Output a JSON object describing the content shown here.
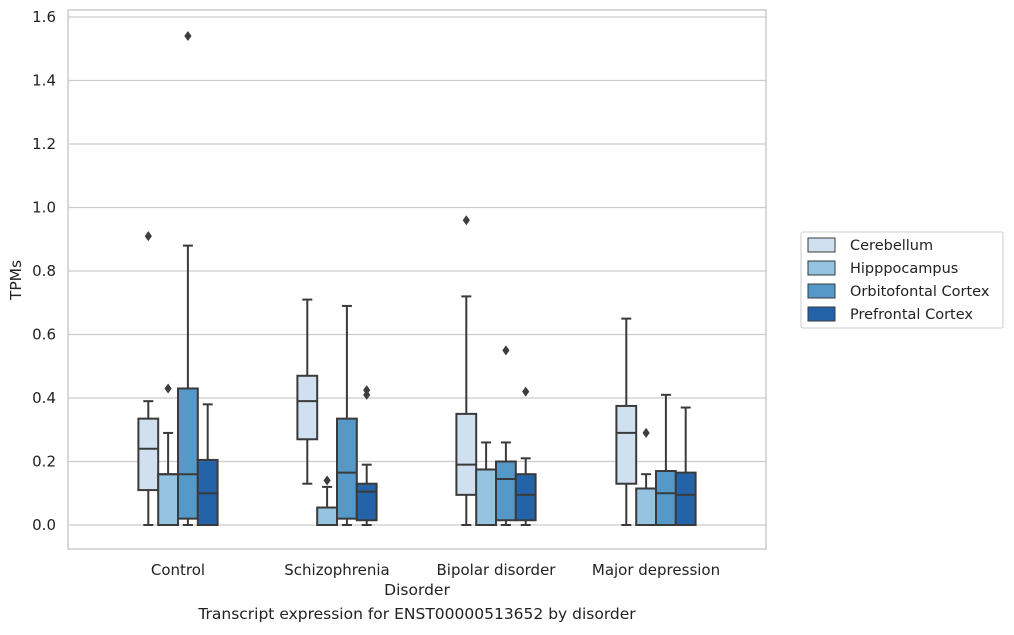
{
  "caption": "Transcript expression for ENST00000513652 by disorder",
  "chart_data": {
    "type": "box",
    "xlabel": "Disorder",
    "ylabel": "TPMs",
    "ylim": [
      -0.075,
      1.62
    ],
    "yticks": [
      "0.0",
      "0.2",
      "0.4",
      "0.6",
      "0.8",
      "1.0",
      "1.2",
      "1.4",
      "1.6"
    ],
    "grid": "horizontal",
    "legend_position": "right",
    "categories": [
      "Control",
      "Schizophrenia",
      "Bipolar disorder",
      "Major depression"
    ],
    "series": [
      {
        "name": "Cerebellum",
        "color": "#d0e0f0",
        "boxes": [
          {
            "whislo": 0.0,
            "q1": 0.11,
            "med": 0.24,
            "q3": 0.335,
            "whishi": 0.39,
            "fliers": [
              0.91
            ]
          },
          {
            "whislo": 0.13,
            "q1": 0.27,
            "med": 0.39,
            "q3": 0.47,
            "whishi": 0.71,
            "fliers": []
          },
          {
            "whislo": 0.0,
            "q1": 0.095,
            "med": 0.19,
            "q3": 0.35,
            "whishi": 0.72,
            "fliers": [
              0.96
            ]
          },
          {
            "whislo": 0.0,
            "q1": 0.13,
            "med": 0.29,
            "q3": 0.375,
            "whishi": 0.65,
            "fliers": []
          }
        ]
      },
      {
        "name": "Hipppocampus",
        "color": "#94c4df",
        "boxes": [
          {
            "whislo": 0.0,
            "q1": 0.0,
            "med": 0.16,
            "q3": 0.16,
            "whishi": 0.29,
            "fliers": [
              0.43
            ]
          },
          {
            "whislo": 0.0,
            "q1": 0.0,
            "med": 0.0,
            "q3": 0.055,
            "whishi": 0.12,
            "fliers": [
              0.14
            ]
          },
          {
            "whislo": 0.0,
            "q1": 0.0,
            "med": 0.175,
            "q3": 0.175,
            "whishi": 0.26,
            "fliers": []
          },
          {
            "whislo": 0.0,
            "q1": 0.0,
            "med": 0.115,
            "q3": 0.115,
            "whishi": 0.16,
            "fliers": [
              0.29
            ]
          }
        ]
      },
      {
        "name": "Orbitofontal Cortex",
        "color": "#5599c8",
        "boxes": [
          {
            "whislo": 0.0,
            "q1": 0.02,
            "med": 0.16,
            "q3": 0.43,
            "whishi": 0.88,
            "fliers": [
              1.54
            ]
          },
          {
            "whislo": 0.0,
            "q1": 0.02,
            "med": 0.165,
            "q3": 0.335,
            "whishi": 0.69,
            "fliers": []
          },
          {
            "whislo": 0.0,
            "q1": 0.015,
            "med": 0.145,
            "q3": 0.2,
            "whishi": 0.26,
            "fliers": [
              0.55
            ]
          },
          {
            "whislo": 0.0,
            "q1": 0.0,
            "med": 0.1,
            "q3": 0.17,
            "whishi": 0.41,
            "fliers": []
          }
        ]
      },
      {
        "name": "Prefrontal Cortex",
        "color": "#2563a8",
        "boxes": [
          {
            "whislo": 0.0,
            "q1": 0.0,
            "med": 0.1,
            "q3": 0.205,
            "whishi": 0.38,
            "fliers": []
          },
          {
            "whislo": 0.0,
            "q1": 0.015,
            "med": 0.105,
            "q3": 0.13,
            "whishi": 0.19,
            "fliers": [
              0.41,
              0.425
            ]
          },
          {
            "whislo": 0.0,
            "q1": 0.015,
            "med": 0.095,
            "q3": 0.16,
            "whishi": 0.21,
            "fliers": [
              0.42
            ]
          },
          {
            "whislo": 0.0,
            "q1": 0.0,
            "med": 0.095,
            "q3": 0.165,
            "whishi": 0.37,
            "fliers": []
          }
        ]
      }
    ]
  }
}
